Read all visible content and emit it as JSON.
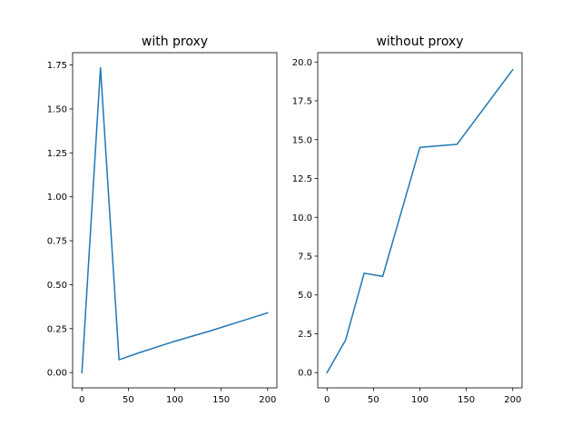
{
  "chart_data": [
    {
      "type": "line",
      "title": "with proxy",
      "xlabel": "",
      "ylabel": "",
      "xlim": [
        -10,
        210
      ],
      "ylim": [
        -0.087,
        1.82
      ],
      "xticks": [
        0,
        50,
        100,
        150,
        200
      ],
      "xtick_labels": [
        "0",
        "50",
        "100",
        "150",
        "200"
      ],
      "yticks": [
        0.0,
        0.25,
        0.5,
        0.75,
        1.0,
        1.25,
        1.5,
        1.75
      ],
      "ytick_labels": [
        "0.00",
        "0.25",
        "0.50",
        "0.75",
        "1.00",
        "1.25",
        "1.50",
        "1.75"
      ],
      "grid": false,
      "color": "#1f77b4",
      "series": [
        {
          "x": [
            0,
            20,
            40,
            60,
            100,
            140,
            200
          ],
          "y": [
            0.0,
            1.735,
            0.073,
            0.11,
            0.178,
            0.24,
            0.34
          ]
        }
      ]
    },
    {
      "type": "line",
      "title": "without proxy",
      "xlabel": "",
      "ylabel": "",
      "xlim": [
        -10,
        210
      ],
      "ylim": [
        -0.98,
        20.6
      ],
      "xticks": [
        0,
        50,
        100,
        150,
        200
      ],
      "xtick_labels": [
        "0",
        "50",
        "100",
        "150",
        "200"
      ],
      "yticks": [
        0.0,
        2.5,
        5.0,
        7.5,
        10.0,
        12.5,
        15.0,
        17.5,
        20.0
      ],
      "ytick_labels": [
        "0.0",
        "2.5",
        "5.0",
        "7.5",
        "10.0",
        "12.5",
        "15.0",
        "17.5",
        "20.0"
      ],
      "grid": false,
      "color": "#1f77b4",
      "series": [
        {
          "x": [
            0,
            20,
            40,
            60,
            100,
            140,
            200
          ],
          "y": [
            0.0,
            2.1,
            6.4,
            6.2,
            14.5,
            14.7,
            19.5
          ]
        }
      ]
    }
  ]
}
